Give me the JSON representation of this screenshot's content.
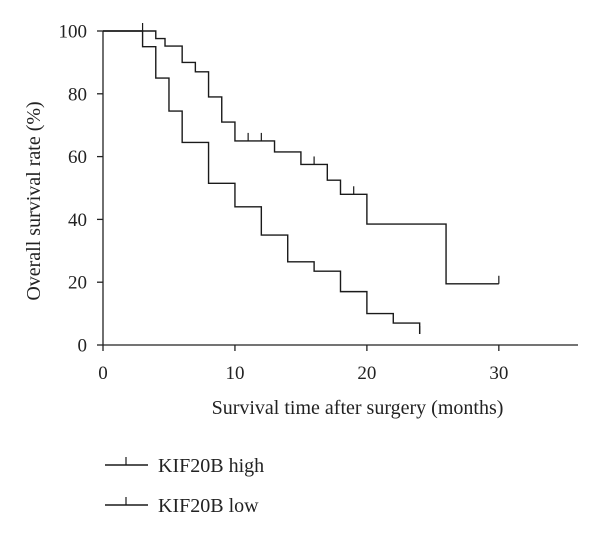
{
  "chart_data": {
    "type": "line",
    "subtype": "kaplan-meier step",
    "title": "",
    "xlabel": "Survival time after surgery (months)",
    "ylabel": "Overall survival rate (%)",
    "xlim": [
      0,
      36
    ],
    "ylim": [
      0,
      100
    ],
    "xticks": [
      0,
      10,
      20,
      30
    ],
    "yticks": [
      0,
      20,
      40,
      60,
      80,
      100
    ],
    "grid": false,
    "legend_position": "bottom-left",
    "colors": {
      "line": "#1a1a1a",
      "axis": "#222222"
    },
    "series": [
      {
        "name": "KIF20B high",
        "steps": [
          {
            "x": 0,
            "y": 100
          },
          {
            "x": 4,
            "y": 97.6
          },
          {
            "x": 4.7,
            "y": 95.2
          },
          {
            "x": 6,
            "y": 90
          },
          {
            "x": 7,
            "y": 87
          },
          {
            "x": 8,
            "y": 79
          },
          {
            "x": 9,
            "y": 71
          },
          {
            "x": 10,
            "y": 65
          },
          {
            "x": 13,
            "y": 61.5
          },
          {
            "x": 15,
            "y": 57.5
          },
          {
            "x": 17,
            "y": 52.5
          },
          {
            "x": 18,
            "y": 48
          },
          {
            "x": 20,
            "y": 38.5
          },
          {
            "x": 26,
            "y": 19.5
          }
        ],
        "end_x": 30,
        "censored": [
          {
            "x": 3,
            "y": 100
          },
          {
            "x": 11,
            "y": 65
          },
          {
            "x": 12,
            "y": 65
          },
          {
            "x": 16,
            "y": 57.5
          },
          {
            "x": 19,
            "y": 48
          },
          {
            "x": 30,
            "y": 19.5
          }
        ]
      },
      {
        "name": "KIF20B low",
        "steps": [
          {
            "x": 0,
            "y": 100
          },
          {
            "x": 3,
            "y": 95
          },
          {
            "x": 4,
            "y": 85
          },
          {
            "x": 5,
            "y": 74.5
          },
          {
            "x": 6,
            "y": 64.5
          },
          {
            "x": 8,
            "y": 51.5
          },
          {
            "x": 10,
            "y": 44
          },
          {
            "x": 12,
            "y": 35
          },
          {
            "x": 14,
            "y": 26.5
          },
          {
            "x": 16,
            "y": 23.5
          },
          {
            "x": 18,
            "y": 17
          },
          {
            "x": 20,
            "y": 10
          },
          {
            "x": 22,
            "y": 7
          },
          {
            "x": 24,
            "y": 3.5
          }
        ],
        "end_x": 24,
        "censored": [
          {
            "x": 24,
            "y": 3.5
          }
        ]
      }
    ]
  }
}
